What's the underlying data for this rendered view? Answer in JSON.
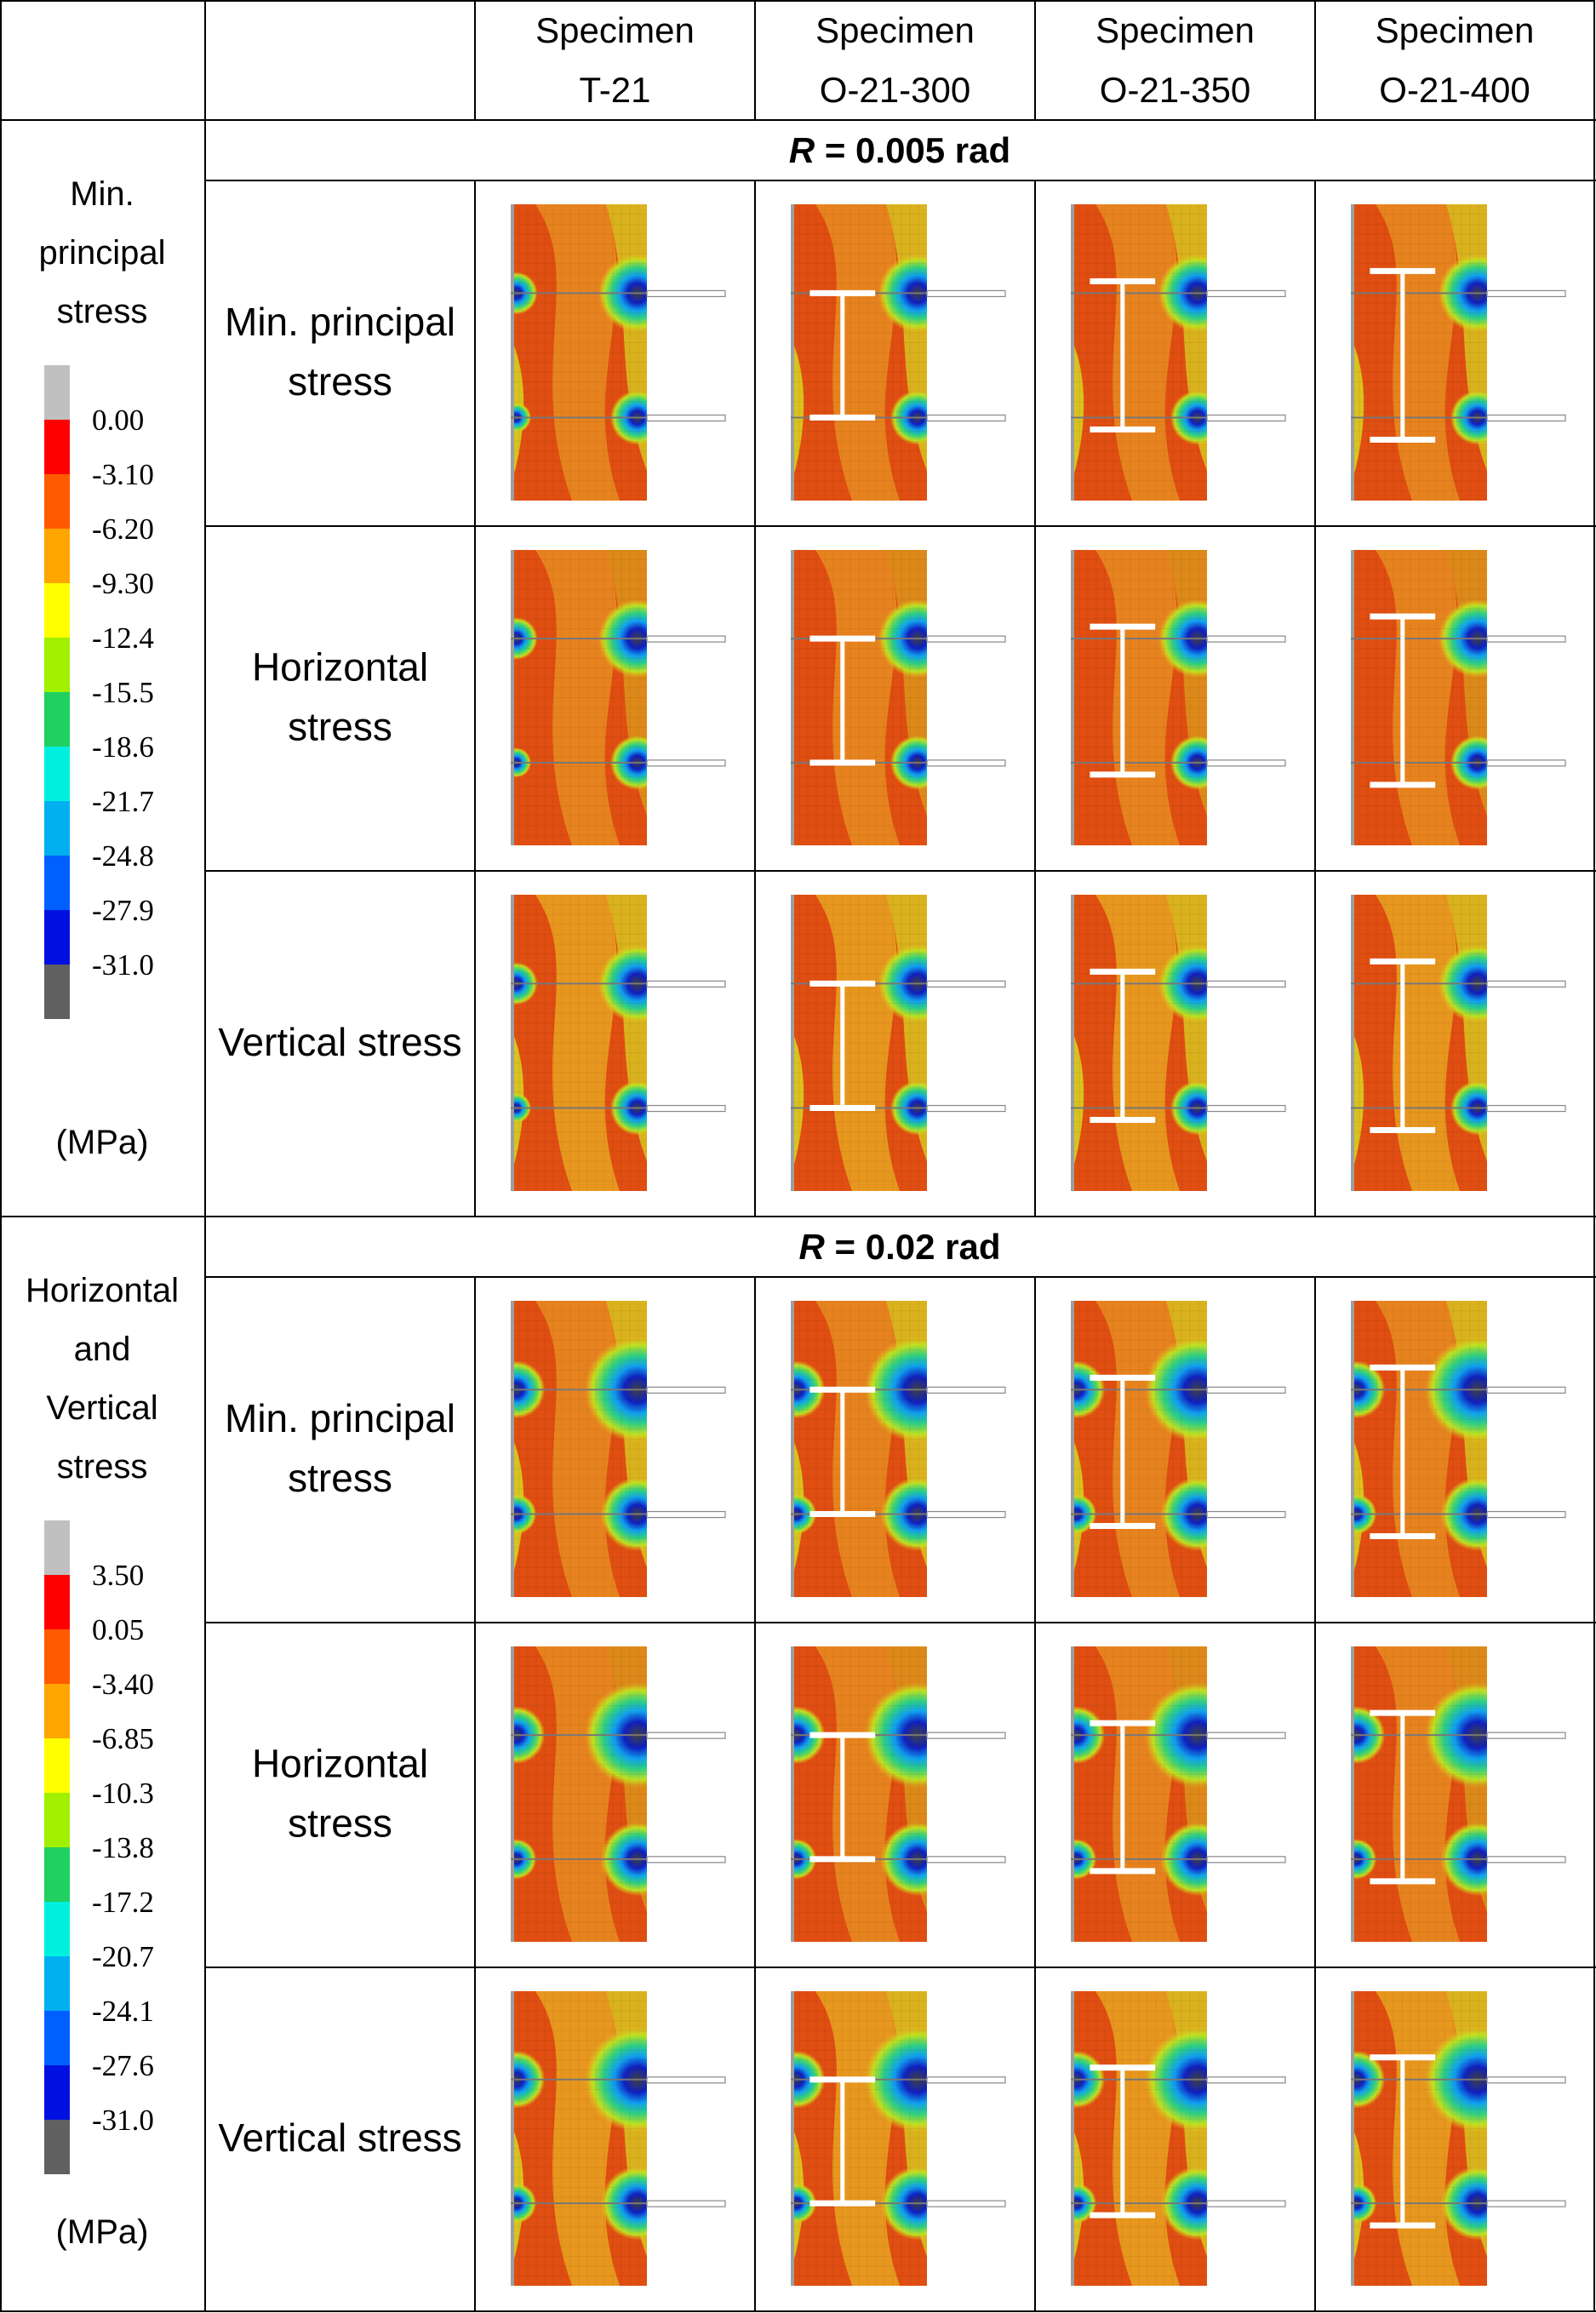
{
  "columns": [
    "Specimen\nT-21",
    "Specimen\nO-21-300",
    "Specimen\nO-21-350",
    "Specimen\nO-21-400"
  ],
  "sections": [
    {
      "title": "R = 0.005 rad",
      "side_title": "Min.\nprincipal\nstress",
      "units": "(MPa)",
      "colorbar": {
        "labels": [
          "0.00",
          "-3.10",
          "-6.20",
          "-9.30",
          "-12.4",
          "-15.5",
          "-18.6",
          "-21.7",
          "-24.8",
          "-27.9",
          "-31.0"
        ]
      },
      "rows": [
        "Min. principal\nstress",
        "Horizontal\nstress",
        "Vertical stress"
      ]
    },
    {
      "title": "R = 0.02 rad",
      "side_title": "Horizontal\nand\nVertical\nstress",
      "units": "(MPa)",
      "colorbar": {
        "labels": [
          "3.50",
          "0.05",
          "-3.40",
          "-6.85",
          "-10.3",
          "-13.8",
          "-17.2",
          "-20.7",
          "-24.1",
          "-27.6",
          "-31.0"
        ]
      },
      "rows": [
        "Min. principal\nstress",
        "Horizontal\nstress",
        "Vertical stress"
      ]
    }
  ],
  "colors": {
    "scale": [
      "#c0c0c0",
      "#ff0000",
      "#ff5a00",
      "#ffa500",
      "#ffff00",
      "#a0f000",
      "#20d060",
      "#00f0e0",
      "#00b0f0",
      "#0060ff",
      "#0010e0",
      "#606060"
    ],
    "plate": "#e04a10",
    "mid": "#f0a020",
    "yellow": "#e8d020",
    "green": "#40c060",
    "blue": "#2040d0",
    "grid": "#000000"
  },
  "icons": {
    "stress-contour": "contour-plot-icon",
    "steel-beam": "beam-icon"
  }
}
